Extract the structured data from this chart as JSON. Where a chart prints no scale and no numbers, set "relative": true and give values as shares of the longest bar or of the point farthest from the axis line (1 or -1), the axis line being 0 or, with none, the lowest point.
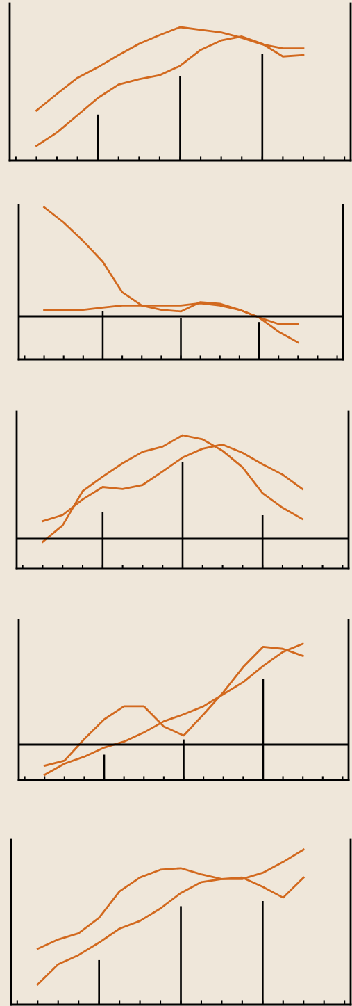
{
  "chart_data": [
    {
      "type": "line",
      "relative": true,
      "grid": false,
      "categories": [
        null,
        null,
        null,
        null,
        null,
        null,
        null,
        null,
        null,
        null,
        null,
        null,
        null,
        null
      ],
      "series": [
        {
          "color": "#d2691e",
          "values": [
            0.375,
            0.5,
            0.62,
            0.7,
            0.79,
            0.875,
            0.94,
            1,
            0.98,
            0.96,
            0.92,
            0.87,
            0.84,
            0.84
          ]
        },
        {
          "color": "#d2691e",
          "values": [
            0.11,
            0.21,
            0.34,
            0.47,
            0.57,
            0.61,
            0.64,
            0.71,
            0.83,
            0.9,
            0.93,
            0.875,
            0.78,
            0.79
          ]
        }
      ]
    },
    {
      "type": "bar",
      "relative": true,
      "grid": false,
      "categories": [
        null,
        null,
        null
      ],
      "series": [
        {
          "color": "#000000",
          "values": [
            0.43,
            0.79,
            1
          ]
        }
      ]
    },
    {
      "type": "line",
      "relative": true,
      "grid": false,
      "categories": [
        null,
        null,
        null,
        null,
        null,
        null,
        null,
        null,
        null,
        null,
        null,
        null,
        null,
        null
      ],
      "series": [
        {
          "color": "#d2691e",
          "values": [
            1,
            0.86,
            0.69,
            0.5,
            0.22,
            0.1,
            0.06,
            0.045,
            0.13,
            0.115,
            0.06,
            -0.01,
            -0.14,
            -0.24
          ]
        },
        {
          "color": "#d2691e",
          "values": [
            0.06,
            0.06,
            0.06,
            0.08,
            0.1,
            0.1,
            0.1,
            0.1,
            0.12,
            0.1,
            0.06,
            -0.01,
            -0.07,
            -0.07
          ]
        }
      ]
    },
    {
      "type": "bar",
      "relative": true,
      "grid": false,
      "categories": [
        null,
        null,
        null
      ],
      "series": [
        {
          "color": "#000000",
          "values": [
            1,
            0.855,
            0.78
          ]
        }
      ]
    },
    {
      "type": "line",
      "relative": true,
      "grid": false,
      "categories": [
        null,
        null,
        null,
        null,
        null,
        null,
        null,
        null,
        null,
        null,
        null,
        null,
        null,
        null
      ],
      "series": [
        {
          "color": "#d2691e",
          "values": [
            -0.03,
            0.13,
            0.46,
            0.6,
            0.73,
            0.84,
            0.89,
            1,
            0.96,
            0.85,
            0.69,
            0.44,
            0.3,
            0.19
          ]
        },
        {
          "color": "#d2691e",
          "values": [
            0.17,
            0.23,
            0.38,
            0.5,
            0.48,
            0.52,
            0.65,
            0.785,
            0.87,
            0.91,
            0.83,
            0.72,
            0.62,
            0.48
          ]
        }
      ]
    },
    {
      "type": "bar",
      "relative": true,
      "grid": false,
      "categories": [
        null,
        null,
        null
      ],
      "series": [
        {
          "color": "#000000",
          "values": [
            0.53,
            1,
            0.5
          ]
        }
      ]
    },
    {
      "type": "line",
      "relative": true,
      "grid": false,
      "categories": [
        null,
        null,
        null,
        null,
        null,
        null,
        null,
        null,
        null,
        null,
        null,
        null,
        null,
        null
      ],
      "series": [
        {
          "color": "#d2691e",
          "values": [
            -0.21,
            -0.16,
            0.055,
            0.25,
            0.38,
            0.38,
            0.18,
            0.09,
            0.3,
            0.52,
            0.77,
            0.97,
            0.95,
            0.88
          ]
        },
        {
          "color": "#d2691e",
          "values": [
            -0.3,
            -0.19,
            -0.12,
            -0.03,
            0.03,
            0.12,
            0.23,
            0.3,
            0.38,
            0.5,
            0.62,
            0.78,
            0.92,
            1
          ]
        }
      ]
    },
    {
      "type": "bar",
      "relative": true,
      "grid": false,
      "categories": [
        null,
        null,
        null
      ],
      "series": [
        {
          "color": "#000000",
          "values": [
            0.25,
            0.4,
            1
          ]
        }
      ]
    },
    {
      "type": "line",
      "relative": true,
      "grid": false,
      "categories": [
        null,
        null,
        null,
        null,
        null,
        null,
        null,
        null,
        null,
        null,
        null,
        null,
        null,
        null
      ],
      "series": [
        {
          "color": "#d2691e",
          "values": [
            0.36,
            0.42,
            0.46,
            0.56,
            0.73,
            0.82,
            0.87,
            0.88,
            0.84,
            0.81,
            0.82,
            0.76,
            0.69,
            0.82
          ]
        },
        {
          "color": "#d2691e",
          "values": [
            0.13,
            0.26,
            0.32,
            0.4,
            0.49,
            0.54,
            0.62,
            0.72,
            0.79,
            0.81,
            0.81,
            0.85,
            0.92,
            1
          ]
        }
      ]
    },
    {
      "type": "bar",
      "relative": true,
      "grid": false,
      "categories": [
        null,
        null,
        null
      ],
      "series": [
        {
          "color": "#000000",
          "values": [
            0.43,
            0.95,
            1
          ]
        }
      ]
    }
  ]
}
